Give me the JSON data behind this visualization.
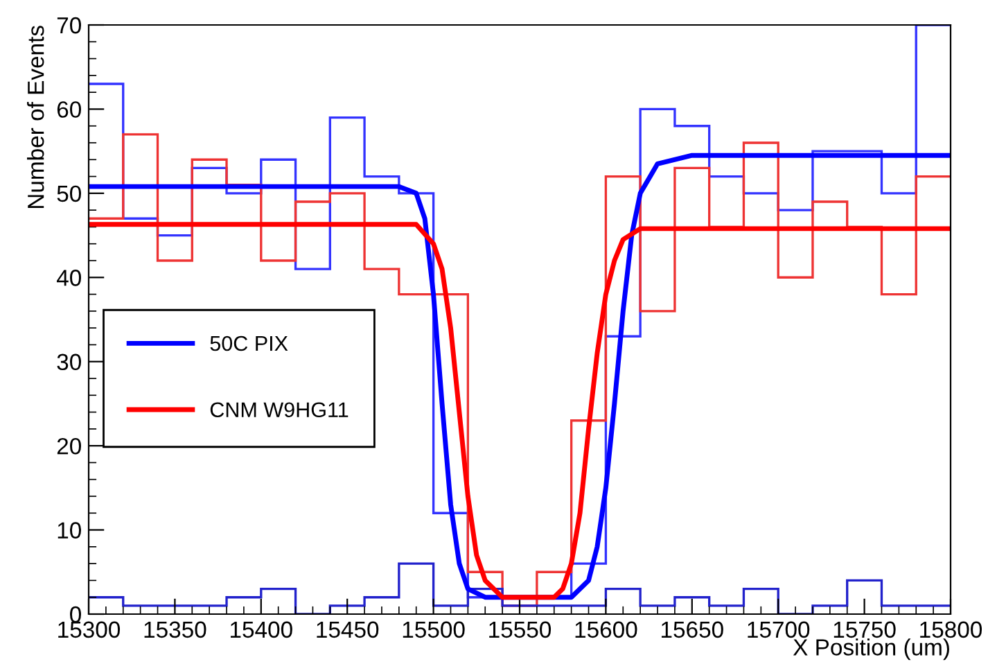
{
  "chart_data": {
    "type": "histogram",
    "xlabel": "X Position (um)",
    "ylabel": "Number of Events",
    "bins": [
      15300,
      15320,
      15340,
      15360,
      15380,
      15400,
      15420,
      15440,
      15460,
      15480,
      15500,
      15520,
      15540,
      15560,
      15580,
      15600,
      15620,
      15640,
      15660,
      15680,
      15700,
      15720,
      15740,
      15760,
      15780,
      15800
    ],
    "series": [
      {
        "color": "#3333ff",
        "values": [
          63,
          47,
          45,
          53,
          50,
          54,
          41,
          59,
          52,
          50,
          12,
          2,
          2,
          2,
          6,
          33,
          60,
          58,
          52,
          50,
          48,
          55,
          55,
          50,
          70
        ]
      },
      {
        "color": "#ee3333",
        "values": [
          47,
          57,
          42,
          54,
          51,
          42,
          49,
          50,
          41,
          38,
          38,
          5,
          1,
          5,
          23,
          52,
          36,
          53,
          46,
          56,
          40,
          49,
          46,
          38,
          52
        ]
      },
      {
        "color": "#2222cc",
        "values": [
          2,
          1,
          1,
          1,
          2,
          3,
          0,
          1,
          2,
          6,
          1,
          3,
          1,
          1,
          1,
          3,
          1,
          2,
          1,
          3,
          0,
          1,
          4,
          1,
          1
        ]
      },
      {
        "type": "line",
        "name": "50C PIX",
        "color": "#0000ff",
        "x": [
          15300,
          15480,
          15490,
          15495,
          15500,
          15505,
          15510,
          15515,
          15520,
          15530,
          15580,
          15590,
          15595,
          15600,
          15605,
          15610,
          15615,
          15620,
          15630,
          15650,
          15800
        ],
        "values": [
          50.8,
          50.8,
          50,
          47,
          38,
          25,
          13,
          6,
          3,
          2,
          2,
          4,
          8,
          15,
          25,
          36,
          45,
          50,
          53.5,
          54.5,
          54.5
        ]
      },
      {
        "type": "line",
        "name": "CNM W9HG11",
        "color": "#ff0000",
        "x": [
          15300,
          15490,
          15500,
          15505,
          15510,
          15515,
          15520,
          15525,
          15530,
          15540,
          15570,
          15575,
          15580,
          15585,
          15590,
          15595,
          15600,
          15605,
          15610,
          15620,
          15800
        ],
        "values": [
          46.3,
          46.3,
          44,
          41,
          34,
          24,
          14,
          7,
          4,
          2,
          2,
          3,
          6,
          12,
          22,
          31,
          38,
          42,
          44.5,
          45.8,
          45.8
        ]
      }
    ],
    "xlim": [
      15300,
      15800
    ],
    "xticks": [
      15300,
      15350,
      15400,
      15450,
      15500,
      15550,
      15600,
      15650,
      15700,
      15750,
      15800
    ],
    "ylim": [
      0,
      70
    ],
    "yticks": [
      0,
      10,
      20,
      30,
      40,
      50,
      60,
      70
    ],
    "legend": "center left",
    "grid": false
  }
}
